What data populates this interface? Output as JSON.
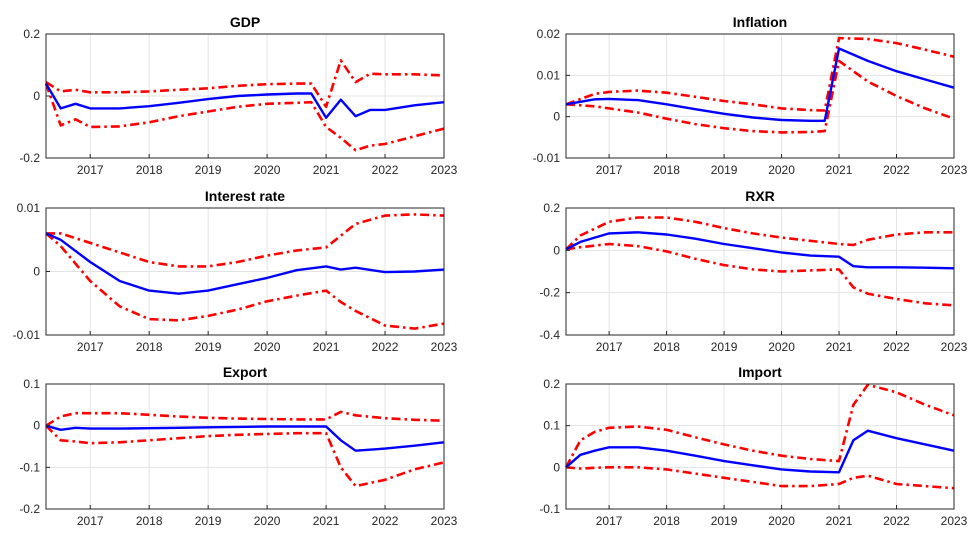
{
  "chart_data": [
    {
      "type": "line",
      "title": "GDP",
      "xlim": [
        2016.25,
        2023
      ],
      "ylim": [
        -0.2,
        0.2
      ],
      "xticks": [
        2017,
        2018,
        2019,
        2020,
        2021,
        2022,
        2023
      ],
      "yticks": [
        -0.2,
        0,
        0.2
      ],
      "ytick_labels": [
        "-0.2",
        "0",
        "0.2"
      ],
      "grid": true,
      "series": [
        {
          "role": "median",
          "color": "#0000ff",
          "style": "solid",
          "x": [
            2016.25,
            2016.5,
            2016.75,
            2017,
            2017.5,
            2018,
            2018.5,
            2019,
            2019.5,
            2020,
            2020.5,
            2020.75,
            2021,
            2021.25,
            2021.5,
            2021.75,
            2022,
            2022.5,
            2023
          ],
          "y": [
            0.04,
            -0.04,
            -0.025,
            -0.04,
            -0.04,
            -0.033,
            -0.022,
            -0.01,
            0.0,
            0.005,
            0.008,
            0.008,
            -0.07,
            -0.012,
            -0.065,
            -0.045,
            -0.045,
            -0.03,
            -0.02
          ]
        },
        {
          "role": "upper",
          "color": "#ff0000",
          "style": "dashdot",
          "x": [
            2016.25,
            2016.5,
            2016.75,
            2017,
            2017.5,
            2018,
            2018.5,
            2019,
            2019.5,
            2020,
            2020.5,
            2020.75,
            2021,
            2021.25,
            2021.5,
            2021.75,
            2022,
            2022.5,
            2023
          ],
          "y": [
            0.045,
            0.015,
            0.02,
            0.012,
            0.012,
            0.015,
            0.02,
            0.025,
            0.033,
            0.038,
            0.04,
            0.04,
            -0.035,
            0.115,
            0.045,
            0.072,
            0.07,
            0.07,
            0.066
          ]
        },
        {
          "role": "lower",
          "color": "#ff0000",
          "style": "dashdot",
          "x": [
            2016.25,
            2016.5,
            2016.75,
            2017,
            2017.5,
            2018,
            2018.5,
            2019,
            2019.5,
            2020,
            2020.5,
            2020.75,
            2021,
            2021.25,
            2021.5,
            2021.75,
            2022,
            2022.5,
            2023
          ],
          "y": [
            0.04,
            -0.095,
            -0.075,
            -0.1,
            -0.098,
            -0.085,
            -0.065,
            -0.05,
            -0.035,
            -0.025,
            -0.022,
            -0.02,
            -0.1,
            -0.135,
            -0.175,
            -0.16,
            -0.155,
            -0.13,
            -0.105
          ]
        }
      ]
    },
    {
      "type": "line",
      "title": "Inflation",
      "xlim": [
        2016.25,
        2023
      ],
      "ylim": [
        -0.01,
        0.02
      ],
      "xticks": [
        2017,
        2018,
        2019,
        2020,
        2021,
        2022,
        2023
      ],
      "yticks": [
        -0.01,
        0,
        0.01,
        0.02
      ],
      "ytick_labels": [
        "-0.01",
        "0",
        "0.01",
        "0.02"
      ],
      "grid": true,
      "series": [
        {
          "role": "median",
          "color": "#0000ff",
          "style": "solid",
          "x": [
            2016.25,
            2016.75,
            2017,
            2017.5,
            2018,
            2018.5,
            2019,
            2019.5,
            2020,
            2020.5,
            2020.75,
            2021,
            2021.5,
            2022,
            2022.5,
            2023
          ],
          "y": [
            0.003,
            0.0042,
            0.0043,
            0.004,
            0.003,
            0.0018,
            0.0007,
            -0.0002,
            -0.0008,
            -0.001,
            -0.001,
            0.0165,
            0.0135,
            0.011,
            0.009,
            0.007
          ]
        },
        {
          "role": "upper",
          "color": "#ff0000",
          "style": "dashdot",
          "x": [
            2016.25,
            2016.75,
            2017,
            2017.5,
            2018,
            2018.5,
            2019,
            2019.5,
            2020,
            2020.5,
            2020.75,
            2021,
            2021.5,
            2022,
            2022.5,
            2023
          ],
          "y": [
            0.003,
            0.0055,
            0.006,
            0.0063,
            0.0058,
            0.0048,
            0.0038,
            0.003,
            0.002,
            0.0016,
            0.0015,
            0.019,
            0.0188,
            0.0178,
            0.0162,
            0.0145
          ]
        },
        {
          "role": "lower",
          "color": "#ff0000",
          "style": "dashdot",
          "x": [
            2016.25,
            2016.75,
            2017,
            2017.5,
            2018,
            2018.5,
            2019,
            2019.5,
            2020,
            2020.5,
            2020.75,
            2021,
            2021.5,
            2022,
            2022.5,
            2023
          ],
          "y": [
            0.003,
            0.0025,
            0.002,
            0.001,
            -0.0005,
            -0.0018,
            -0.0028,
            -0.0035,
            -0.0038,
            -0.0037,
            -0.0035,
            0.0135,
            0.0085,
            0.005,
            0.002,
            -0.0005
          ]
        }
      ]
    },
    {
      "type": "line",
      "title": "Interest rate",
      "xlim": [
        2016.25,
        2023
      ],
      "ylim": [
        -0.01,
        0.01
      ],
      "xticks": [
        2017,
        2018,
        2019,
        2020,
        2021,
        2022,
        2023
      ],
      "yticks": [
        -0.01,
        0,
        0.01
      ],
      "ytick_labels": [
        "-0.01",
        "0",
        "0.01"
      ],
      "grid": true,
      "series": [
        {
          "role": "median",
          "color": "#0000ff",
          "style": "solid",
          "x": [
            2016.25,
            2016.5,
            2017,
            2017.5,
            2018,
            2018.5,
            2019,
            2019.5,
            2020,
            2020.5,
            2021,
            2021.25,
            2021.5,
            2022,
            2022.5,
            2023
          ],
          "y": [
            0.006,
            0.005,
            0.0015,
            -0.0015,
            -0.003,
            -0.0035,
            -0.003,
            -0.002,
            -0.001,
            0.0002,
            0.0008,
            0.0003,
            0.0006,
            -0.0001,
            0.0,
            0.0003
          ]
        },
        {
          "role": "upper",
          "color": "#ff0000",
          "style": "dashdot",
          "x": [
            2016.25,
            2016.5,
            2017,
            2017.5,
            2018,
            2018.5,
            2019,
            2019.5,
            2020,
            2020.5,
            2021,
            2021.5,
            2022,
            2022.5,
            2023
          ],
          "y": [
            0.006,
            0.006,
            0.0045,
            0.003,
            0.0015,
            0.0008,
            0.0008,
            0.0015,
            0.0025,
            0.0033,
            0.0038,
            0.0075,
            0.0088,
            0.009,
            0.0088
          ]
        },
        {
          "role": "lower",
          "color": "#ff0000",
          "style": "dashdot",
          "x": [
            2016.25,
            2016.5,
            2017,
            2017.5,
            2018,
            2018.5,
            2019,
            2019.5,
            2020,
            2020.5,
            2021,
            2021.25,
            2021.5,
            2022,
            2022.5,
            2023
          ],
          "y": [
            0.006,
            0.004,
            -0.0015,
            -0.0055,
            -0.0075,
            -0.0077,
            -0.007,
            -0.006,
            -0.0047,
            -0.0038,
            -0.003,
            -0.0048,
            -0.0062,
            -0.0085,
            -0.009,
            -0.0082
          ]
        }
      ]
    },
    {
      "type": "line",
      "title": "RXR",
      "xlim": [
        2016.25,
        2023
      ],
      "ylim": [
        -0.4,
        0.2
      ],
      "xticks": [
        2017,
        2018,
        2019,
        2020,
        2021,
        2022,
        2023
      ],
      "yticks": [
        -0.4,
        -0.2,
        0,
        0.2
      ],
      "ytick_labels": [
        "-0.4",
        "-0.2",
        "0",
        "0.2"
      ],
      "grid": true,
      "series": [
        {
          "role": "median",
          "color": "#0000ff",
          "style": "solid",
          "x": [
            2016.25,
            2016.5,
            2017,
            2017.5,
            2018,
            2018.5,
            2019,
            2019.5,
            2020,
            2020.5,
            2021,
            2021.25,
            2021.5,
            2022,
            2022.5,
            2023
          ],
          "y": [
            0.005,
            0.04,
            0.08,
            0.085,
            0.075,
            0.055,
            0.03,
            0.01,
            -0.01,
            -0.025,
            -0.03,
            -0.075,
            -0.08,
            -0.08,
            -0.082,
            -0.085
          ]
        },
        {
          "role": "upper",
          "color": "#ff0000",
          "style": "dashdot",
          "x": [
            2016.25,
            2016.5,
            2017,
            2017.5,
            2018,
            2018.5,
            2019,
            2019.5,
            2020,
            2020.5,
            2021,
            2021.25,
            2021.5,
            2022,
            2022.5,
            2023
          ],
          "y": [
            0.005,
            0.07,
            0.135,
            0.155,
            0.155,
            0.135,
            0.105,
            0.08,
            0.06,
            0.045,
            0.03,
            0.025,
            0.05,
            0.075,
            0.085,
            0.085
          ]
        },
        {
          "role": "lower",
          "color": "#ff0000",
          "style": "dashdot",
          "x": [
            2016.25,
            2016.5,
            2017,
            2017.5,
            2018,
            2018.5,
            2019,
            2019.5,
            2020,
            2020.5,
            2021,
            2021.25,
            2021.5,
            2022,
            2022.5,
            2023
          ],
          "y": [
            0.005,
            0.015,
            0.03,
            0.02,
            -0.005,
            -0.04,
            -0.07,
            -0.09,
            -0.1,
            -0.095,
            -0.09,
            -0.175,
            -0.205,
            -0.23,
            -0.25,
            -0.26
          ]
        }
      ]
    },
    {
      "type": "line",
      "title": "Export",
      "xlim": [
        2016.25,
        2023
      ],
      "ylim": [
        -0.2,
        0.1
      ],
      "xticks": [
        2017,
        2018,
        2019,
        2020,
        2021,
        2022,
        2023
      ],
      "yticks": [
        -0.2,
        -0.1,
        0,
        0.1
      ],
      "ytick_labels": [
        "-0.2",
        "-0.1",
        "0",
        "0.1"
      ],
      "grid": true,
      "series": [
        {
          "role": "median",
          "color": "#0000ff",
          "style": "solid",
          "x": [
            2016.25,
            2016.5,
            2016.75,
            2017,
            2017.5,
            2018,
            2018.5,
            2019,
            2019.5,
            2020,
            2020.5,
            2021,
            2021.25,
            2021.5,
            2022,
            2022.5,
            2023
          ],
          "y": [
            0.0,
            -0.01,
            -0.005,
            -0.007,
            -0.007,
            -0.006,
            -0.005,
            -0.004,
            -0.003,
            -0.002,
            -0.002,
            -0.002,
            -0.035,
            -0.06,
            -0.055,
            -0.048,
            -0.04
          ]
        },
        {
          "role": "upper",
          "color": "#ff0000",
          "style": "dashdot",
          "x": [
            2016.25,
            2016.5,
            2016.75,
            2017,
            2017.5,
            2018,
            2018.5,
            2019,
            2019.5,
            2020,
            2020.5,
            2021,
            2021.25,
            2021.5,
            2022,
            2022.5,
            2023
          ],
          "y": [
            0.0,
            0.022,
            0.03,
            0.03,
            0.03,
            0.026,
            0.022,
            0.019,
            0.017,
            0.016,
            0.015,
            0.015,
            0.033,
            0.025,
            0.018,
            0.014,
            0.012
          ]
        },
        {
          "role": "lower",
          "color": "#ff0000",
          "style": "dashdot",
          "x": [
            2016.25,
            2016.5,
            2016.75,
            2017,
            2017.5,
            2018,
            2018.5,
            2019,
            2019.5,
            2020,
            2020.5,
            2021,
            2021.25,
            2021.5,
            2022,
            2022.5,
            2023
          ],
          "y": [
            0.0,
            -0.035,
            -0.038,
            -0.042,
            -0.04,
            -0.035,
            -0.03,
            -0.025,
            -0.022,
            -0.02,
            -0.018,
            -0.018,
            -0.1,
            -0.145,
            -0.13,
            -0.105,
            -0.088
          ]
        }
      ]
    },
    {
      "type": "line",
      "title": "Import",
      "xlim": [
        2016.25,
        2023
      ],
      "ylim": [
        -0.1,
        0.2
      ],
      "xticks": [
        2017,
        2018,
        2019,
        2020,
        2021,
        2022,
        2023
      ],
      "yticks": [
        -0.1,
        0,
        0.1,
        0.2
      ],
      "ytick_labels": [
        "-0.1",
        "0",
        "0.1",
        "0.2"
      ],
      "grid": true,
      "series": [
        {
          "role": "median",
          "color": "#0000ff",
          "style": "solid",
          "x": [
            2016.25,
            2016.5,
            2016.75,
            2017,
            2017.5,
            2018,
            2018.5,
            2019,
            2019.5,
            2020,
            2020.5,
            2021,
            2021.25,
            2021.5,
            2022,
            2022.5,
            2023
          ],
          "y": [
            0.0,
            0.03,
            0.04,
            0.048,
            0.048,
            0.04,
            0.028,
            0.015,
            0.005,
            -0.005,
            -0.01,
            -0.012,
            0.065,
            0.088,
            0.07,
            0.055,
            0.04
          ]
        },
        {
          "role": "upper",
          "color": "#ff0000",
          "style": "dashdot",
          "x": [
            2016.25,
            2016.5,
            2016.75,
            2017,
            2017.5,
            2018,
            2018.5,
            2019,
            2019.5,
            2020,
            2020.5,
            2021,
            2021.25,
            2021.5,
            2022,
            2022.5,
            2023
          ],
          "y": [
            0.0,
            0.065,
            0.085,
            0.095,
            0.098,
            0.09,
            0.072,
            0.055,
            0.04,
            0.028,
            0.02,
            0.015,
            0.15,
            0.198,
            0.18,
            0.15,
            0.125
          ]
        },
        {
          "role": "lower",
          "color": "#ff0000",
          "style": "dashdot",
          "x": [
            2016.25,
            2016.5,
            2016.75,
            2017,
            2017.5,
            2018,
            2018.5,
            2019,
            2019.5,
            2020,
            2020.5,
            2021,
            2021.25,
            2021.5,
            2022,
            2022.5,
            2023
          ],
          "y": [
            0.0,
            -0.003,
            -0.001,
            0.0,
            0.0,
            -0.005,
            -0.015,
            -0.025,
            -0.035,
            -0.045,
            -0.045,
            -0.04,
            -0.025,
            -0.02,
            -0.04,
            -0.045,
            -0.05
          ]
        }
      ]
    }
  ]
}
